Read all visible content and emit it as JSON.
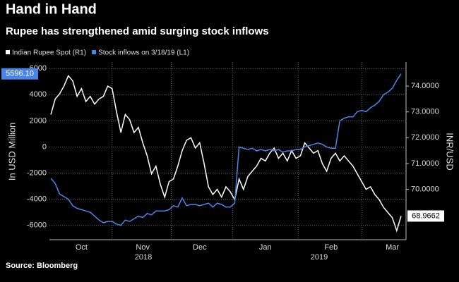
{
  "chart_data": {
    "type": "line",
    "title": "Hand in Hand",
    "subtitle": "Rupee has strengthened amid surging stock inflows",
    "ylabel": "In USD Million",
    "y2label": "INR/USD",
    "source": "Source: Bloomberg",
    "categories": [
      null,
      null,
      null,
      null,
      null,
      null,
      null,
      "Oct",
      null,
      null,
      null,
      null,
      null,
      null,
      null,
      null,
      null,
      null,
      null,
      null,
      null,
      "Nov",
      null,
      null,
      null,
      null,
      null,
      null,
      null,
      null,
      null,
      null,
      null,
      null,
      "Dec",
      null,
      null,
      null,
      null,
      null,
      null,
      null,
      null,
      null,
      null,
      null,
      null,
      null,
      null,
      "Jan",
      null,
      null,
      null,
      null,
      null,
      null,
      null,
      null,
      null,
      null,
      null,
      null,
      null,
      null,
      "Feb",
      null,
      null,
      null,
      null,
      null,
      null,
      null,
      null,
      null,
      null,
      null,
      null,
      null,
      "Mar",
      null,
      null
    ],
    "year_labels": [
      "2018",
      "2019"
    ],
    "ylim": [
      -7100,
      6500
    ],
    "yticks": [
      -6000,
      -4000,
      -2000,
      0,
      2000,
      4000,
      6000
    ],
    "y2lim": [
      68.05,
      74.93
    ],
    "y2ticks": [
      {
        "value": 70,
        "label": "70.0000"
      },
      {
        "value": 71,
        "label": "71.0000"
      },
      {
        "value": 72,
        "label": "72.0000"
      },
      {
        "value": 73,
        "label": "73.0000"
      },
      {
        "value": 74,
        "label": "74.0000"
      }
    ],
    "grid": true,
    "series": [
      {
        "name": "Indian Rupee Spot  (R1)",
        "color": "#ffffff",
        "axis": "y2",
        "last_label": "68.9662",
        "values": [
          72.9,
          73.5,
          73.7,
          74.0,
          74.4,
          74.2,
          73.6,
          73.9,
          73.4,
          73.6,
          73.3,
          73.5,
          73.6,
          74.0,
          73.9,
          73.0,
          72.2,
          72.9,
          72.7,
          72.2,
          72.4,
          71.8,
          71.3,
          70.6,
          70.9,
          70.2,
          69.7,
          70.3,
          70.4,
          70.9,
          71.5,
          71.9,
          72.0,
          71.6,
          71.8,
          71.0,
          70.1,
          69.8,
          70.0,
          69.7,
          70.1,
          69.9,
          69.6,
          70.4,
          70.0,
          70.5,
          70.7,
          70.9,
          71.2,
          71.1,
          71.4,
          71.6,
          71.2,
          71.4,
          71.1,
          71.5,
          71.2,
          71.3,
          71.8,
          71.6,
          71.4,
          71.5,
          71.0,
          70.7,
          71.2,
          71.4,
          71.1,
          71.3,
          71.1,
          70.9,
          70.6,
          70.3,
          70.0,
          70.1,
          69.8,
          69.6,
          69.3,
          69.1,
          68.9,
          68.4,
          68.9662
        ]
      },
      {
        "name": "Stock inflows  on 3/18/19 (L1)",
        "color": "#4a86e8",
        "axis": "y",
        "last_label": "5596.10",
        "values": [
          -2400,
          -2800,
          -3600,
          -3800,
          -4000,
          -4500,
          -4700,
          -4800,
          -4900,
          -5000,
          -5300,
          -5600,
          -5800,
          -5700,
          -5700,
          -5900,
          -6000,
          -5600,
          -5700,
          -5500,
          -5300,
          -5400,
          -5100,
          -5200,
          -4900,
          -4900,
          -4900,
          -4800,
          -4500,
          -4600,
          -3900,
          -4500,
          -4400,
          -4400,
          -4500,
          -4400,
          -4300,
          -4600,
          -4300,
          -4400,
          -4600,
          -4600,
          -4300,
          0,
          -100,
          -200,
          -100,
          -300,
          -200,
          -300,
          -200,
          -300,
          -200,
          -400,
          -300,
          -300,
          -200,
          -200,
          0,
          100,
          200,
          300,
          200,
          0,
          -100,
          -100,
          2000,
          2200,
          2300,
          2300,
          2700,
          2800,
          2700,
          3000,
          3200,
          3500,
          4000,
          4200,
          4500,
          5100,
          5596.1
        ]
      }
    ]
  }
}
